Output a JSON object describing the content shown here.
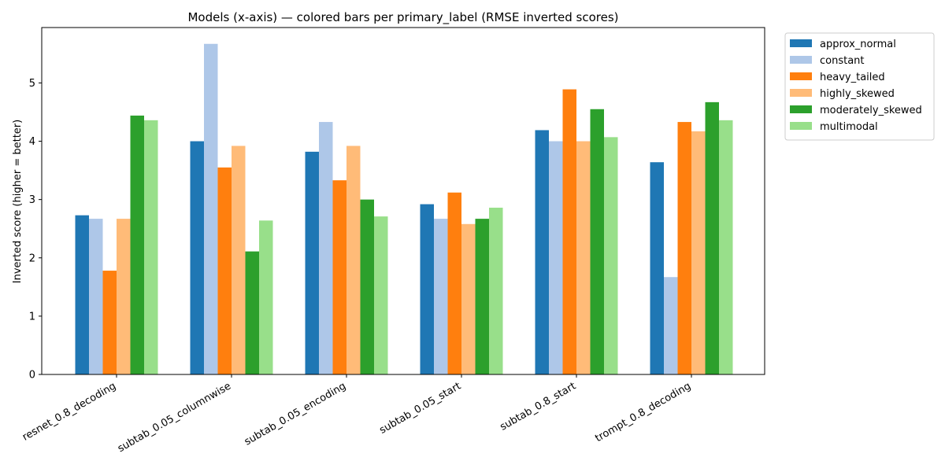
{
  "chart_data": {
    "type": "bar",
    "title": "Models (x-axis) — colored bars per primary_label (RMSE inverted scores)",
    "xlabel": "",
    "ylabel": "Inverted score (higher = better)",
    "ylim": [
      0,
      5.95
    ],
    "yticks": [
      0,
      1,
      2,
      3,
      4,
      5
    ],
    "grid": false,
    "legend_position": "outside-top-right",
    "categories": [
      "resnet_0.8_decoding",
      "subtab_0.05_columnwise",
      "subtab_0.05_encoding",
      "subtab_0.05_start",
      "subtab_0.8_start",
      "trompt_0.8_decoding"
    ],
    "series": [
      {
        "name": "approx_normal",
        "color": "#1f77b4",
        "values": [
          2.73,
          4.0,
          3.82,
          2.92,
          4.19,
          3.64
        ]
      },
      {
        "name": "constant",
        "color": "#aec7e8",
        "values": [
          2.67,
          5.67,
          4.33,
          2.67,
          4.0,
          1.67
        ]
      },
      {
        "name": "heavy_tailed",
        "color": "#ff7f0e",
        "values": [
          1.78,
          3.55,
          3.33,
          3.12,
          4.89,
          4.33
        ]
      },
      {
        "name": "highly_skewed",
        "color": "#ffbb78",
        "values": [
          2.67,
          3.92,
          3.92,
          2.58,
          4.0,
          4.17
        ]
      },
      {
        "name": "moderately_skewed",
        "color": "#2ca02c",
        "values": [
          4.44,
          2.11,
          3.0,
          2.67,
          4.55,
          4.67
        ]
      },
      {
        "name": "multimodal",
        "color": "#98df8a",
        "values": [
          4.36,
          2.64,
          2.71,
          2.86,
          4.07,
          4.36
        ]
      }
    ]
  }
}
